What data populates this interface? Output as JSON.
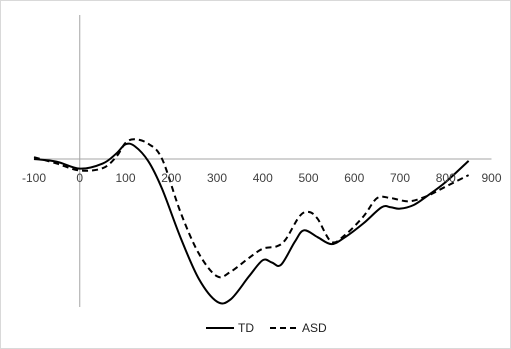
{
  "chart_data": {
    "type": "line",
    "title": "",
    "xlabel": "",
    "ylabel": "",
    "xlim": [
      -100,
      900
    ],
    "x_ticks": [
      -100,
      0,
      100,
      200,
      300,
      400,
      500,
      600,
      700,
      800,
      900
    ],
    "y_axis_labels_shown": false,
    "grid": false,
    "legend_position": "bottom",
    "series": [
      {
        "name": "TD",
        "style": "solid",
        "color": "#000000",
        "points": [
          [
            -100,
            0.0
          ],
          [
            -50,
            -0.6
          ],
          [
            0,
            -2.1
          ],
          [
            50,
            -1.0
          ],
          [
            80,
            1.2
          ],
          [
            100,
            3.2
          ],
          [
            120,
            2.8
          ],
          [
            150,
            -0.5
          ],
          [
            180,
            -6.5
          ],
          [
            220,
            -17.0
          ],
          [
            260,
            -26.0
          ],
          [
            300,
            -31.0
          ],
          [
            330,
            -30.5
          ],
          [
            370,
            -25.5
          ],
          [
            400,
            -22.0
          ],
          [
            420,
            -22.5
          ],
          [
            440,
            -23.0
          ],
          [
            470,
            -18.0
          ],
          [
            490,
            -15.5
          ],
          [
            520,
            -17.0
          ],
          [
            550,
            -18.5
          ],
          [
            580,
            -17.0
          ],
          [
            620,
            -14.0
          ],
          [
            660,
            -10.5
          ],
          [
            680,
            -10.5
          ],
          [
            700,
            -10.8
          ],
          [
            730,
            -10.0
          ],
          [
            760,
            -8.0
          ],
          [
            800,
            -5.0
          ],
          [
            850,
            -0.4
          ]
        ]
      },
      {
        "name": "ASD",
        "style": "dashed",
        "color": "#000000",
        "points": [
          [
            -100,
            0.4
          ],
          [
            -50,
            -1.0
          ],
          [
            0,
            -2.5
          ],
          [
            50,
            -2.0
          ],
          [
            80,
            0.5
          ],
          [
            100,
            3.5
          ],
          [
            120,
            4.3
          ],
          [
            150,
            3.3
          ],
          [
            180,
            0.0
          ],
          [
            220,
            -11.5
          ],
          [
            260,
            -20.5
          ],
          [
            300,
            -25.5
          ],
          [
            330,
            -24.5
          ],
          [
            370,
            -21.5
          ],
          [
            400,
            -19.5
          ],
          [
            430,
            -19.0
          ],
          [
            450,
            -17.5
          ],
          [
            480,
            -12.5
          ],
          [
            500,
            -11.5
          ],
          [
            520,
            -13.0
          ],
          [
            550,
            -18.0
          ],
          [
            580,
            -16.5
          ],
          [
            620,
            -12.5
          ],
          [
            650,
            -8.5
          ],
          [
            680,
            -8.5
          ],
          [
            720,
            -9.2
          ],
          [
            760,
            -8.0
          ],
          [
            800,
            -6.0
          ],
          [
            850,
            -3.5
          ]
        ]
      }
    ]
  }
}
